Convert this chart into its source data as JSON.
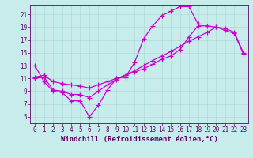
{
  "bg_color": "#c8ecec",
  "line_color": "#cc00cc",
  "marker": "+",
  "markersize": 4,
  "linewidth": 0.9,
  "markeredgewidth": 0.9,
  "xlim": [
    -0.5,
    23.5
  ],
  "ylim": [
    4,
    22.5
  ],
  "xticks": [
    0,
    1,
    2,
    3,
    4,
    5,
    6,
    7,
    8,
    9,
    10,
    11,
    12,
    13,
    14,
    15,
    16,
    17,
    18,
    19,
    20,
    21,
    22,
    23
  ],
  "yticks": [
    5,
    7,
    9,
    11,
    13,
    15,
    17,
    19,
    21
  ],
  "grid_color": "#a8d8d8",
  "series": [
    {
      "x": [
        0,
        1,
        2,
        3,
        4,
        5,
        6,
        7,
        8,
        9,
        10,
        11,
        12,
        13,
        14,
        15,
        16,
        17,
        18
      ],
      "y": [
        13.0,
        10.5,
        9.0,
        8.8,
        7.5,
        7.5,
        5.0,
        6.8,
        9.2,
        11.0,
        11.2,
        13.5,
        17.2,
        19.2,
        20.8,
        21.5,
        22.2,
        22.2,
        19.5
      ]
    },
    {
      "x": [
        0,
        1,
        2,
        3,
        4,
        5,
        6,
        7,
        8,
        9,
        10,
        11,
        12,
        13,
        14,
        15,
        16,
        17,
        18,
        19,
        20,
        21,
        22,
        23
      ],
      "y": [
        11.0,
        11.2,
        9.2,
        9.0,
        8.5,
        8.5,
        8.0,
        9.0,
        10.0,
        10.8,
        11.5,
        12.2,
        13.0,
        13.8,
        14.5,
        15.2,
        16.0,
        16.8,
        17.5,
        18.2,
        19.0,
        18.5,
        18.0,
        14.8
      ]
    },
    {
      "x": [
        0,
        1,
        2,
        3,
        4,
        5,
        6,
        7,
        8,
        9,
        10,
        11,
        12,
        13,
        14,
        15,
        16,
        17,
        18,
        19,
        20,
        21,
        22,
        23
      ],
      "y": [
        11.2,
        11.5,
        10.5,
        10.2,
        10.0,
        9.8,
        9.5,
        10.0,
        10.5,
        11.0,
        11.5,
        12.0,
        12.5,
        13.2,
        14.0,
        14.5,
        15.5,
        17.5,
        19.2,
        19.2,
        19.0,
        18.8,
        18.2,
        15.0
      ]
    }
  ],
  "xlabel": "Windchill (Refroidissement éolien,°C)",
  "tick_fontsize": 5.5,
  "xlabel_fontsize": 6.5,
  "tick_color": "#660066",
  "xlabel_color": "#660066",
  "axis_color": "#660066",
  "spine_linewidth": 0.6,
  "grid_linewidth": 0.4
}
